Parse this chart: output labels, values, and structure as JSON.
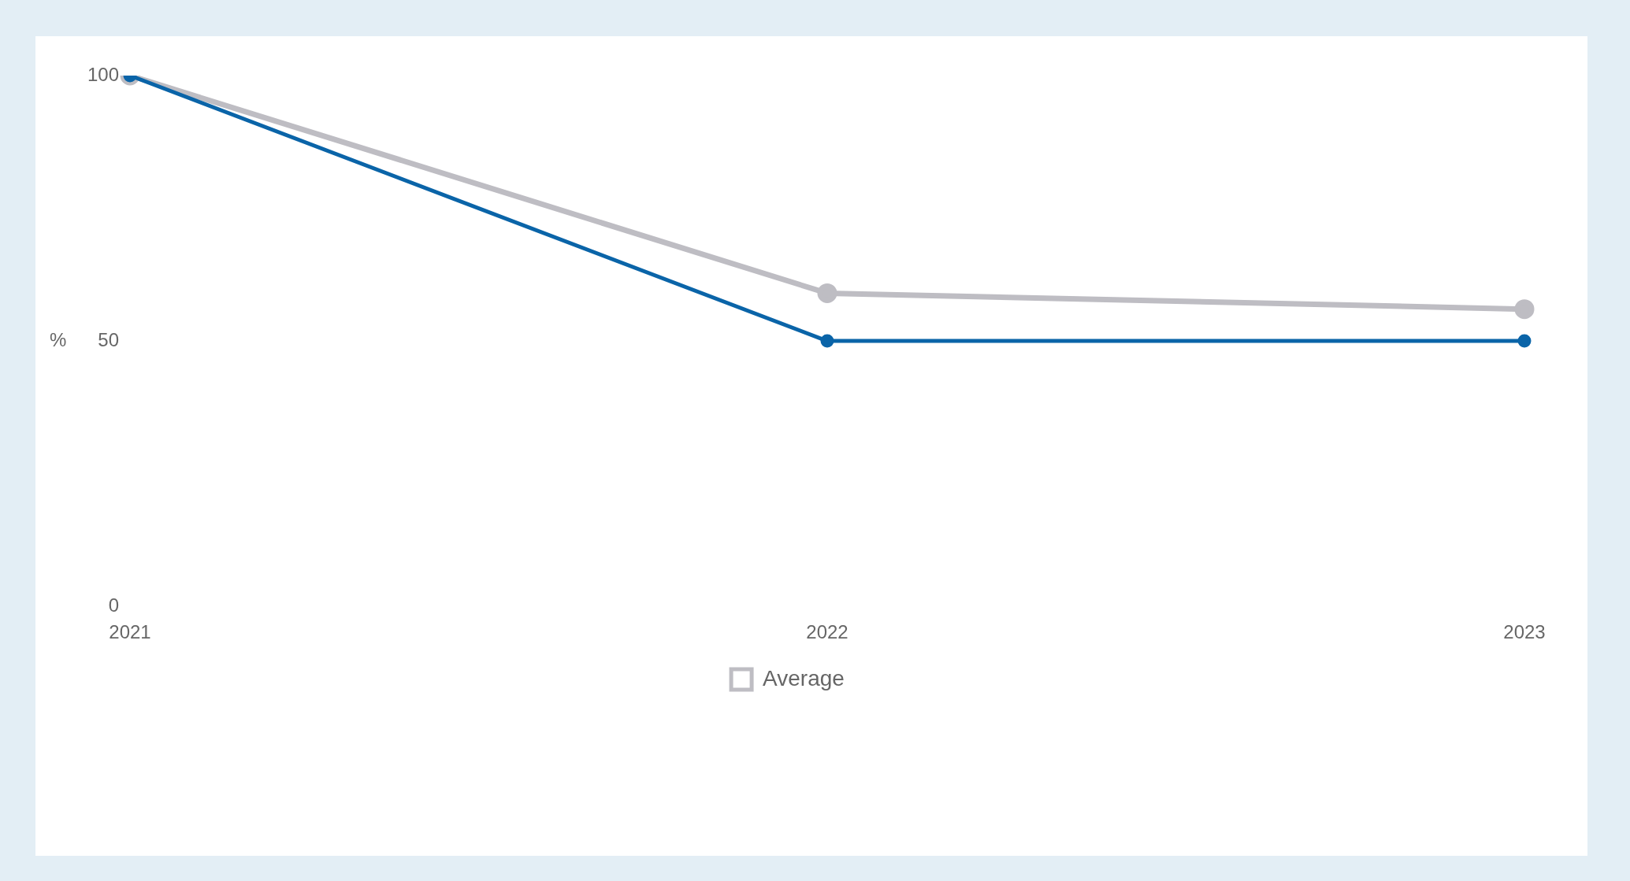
{
  "chart_data": {
    "type": "line",
    "ylabel": "%",
    "categories": [
      "2021",
      "2022",
      "2023"
    ],
    "series": [
      {
        "color": "#0a64a8",
        "values": [
          100,
          50,
          50
        ]
      },
      {
        "name": "Average",
        "color": "#bebdc3",
        "values": [
          100,
          59,
          56
        ]
      }
    ],
    "ylim": [
      0,
      100
    ],
    "yticks": [
      0,
      50,
      100
    ],
    "grid": false,
    "legend": "bottom",
    "marker": "circle",
    "line_style": "solid"
  }
}
